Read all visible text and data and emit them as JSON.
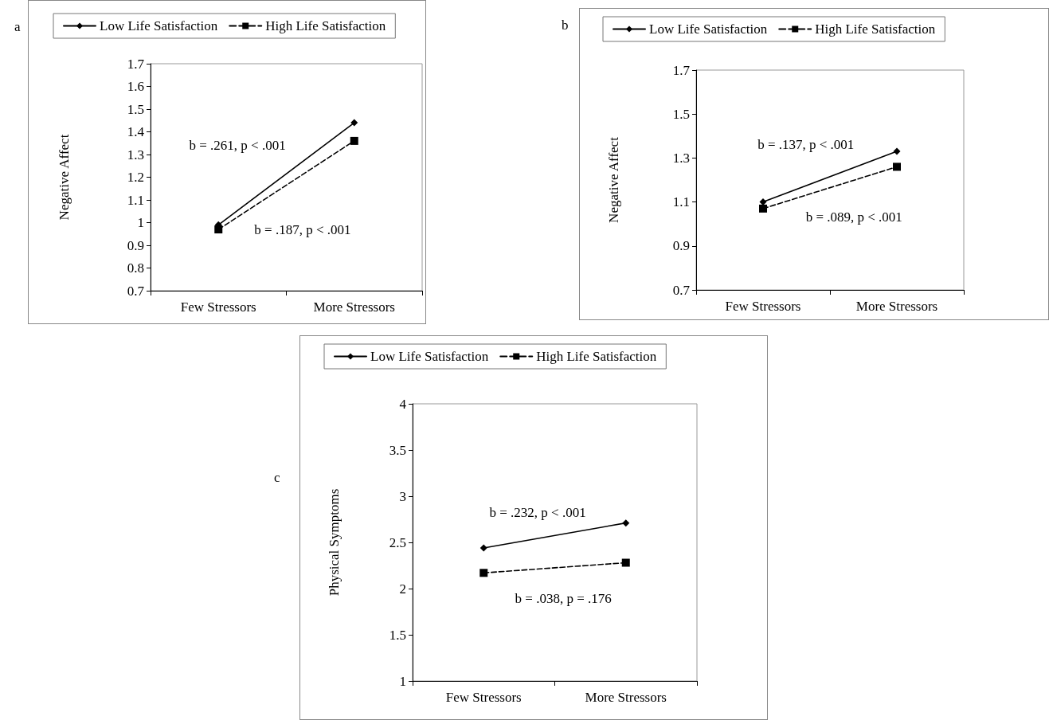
{
  "chart_data": [
    {
      "type": "line",
      "categories": [
        "Few Stressors",
        "More Stressors"
      ],
      "ylabel": "Negative Affect",
      "ylim": [
        0.7,
        1.7
      ],
      "yticks": [
        0.7,
        0.8,
        0.9,
        1,
        1.1,
        1.2,
        1.3,
        1.4,
        1.5,
        1.6,
        1.7
      ],
      "grid": false,
      "legend": "top",
      "series": [
        {
          "name": "Low Life Satisfaction",
          "color": "#000000",
          "marker": "diamond",
          "line_style": "solid",
          "values": [
            0.99,
            1.44
          ]
        },
        {
          "name": "High Life Satisfaction",
          "color": "#000000",
          "marker": "square",
          "line_style": "dashed",
          "values": [
            0.97,
            1.36
          ]
        }
      ],
      "annotations": [
        "a",
        "b = .261, p < .001",
        "b = .187, p < .001"
      ]
    },
    {
      "type": "line",
      "categories": [
        "Few Stressors",
        "More Stressors"
      ],
      "ylabel": "Negative Affect",
      "ylim": [
        0.7,
        1.7
      ],
      "yticks": [
        0.7,
        0.9,
        1.1,
        1.3,
        1.5,
        1.7
      ],
      "grid": false,
      "legend": "top",
      "series": [
        {
          "name": "Low Life Satisfaction",
          "color": "#000000",
          "marker": "diamond",
          "line_style": "solid",
          "values": [
            1.1,
            1.33
          ]
        },
        {
          "name": "High Life Satisfaction",
          "color": "#000000",
          "marker": "square",
          "line_style": "dashed",
          "values": [
            1.07,
            1.26
          ]
        }
      ],
      "annotations": [
        "b",
        "b = .137, p < .001",
        "b = .089, p < .001"
      ]
    },
    {
      "type": "line",
      "categories": [
        "Few Stressors",
        "More Stressors"
      ],
      "ylabel": "Physical Symptoms",
      "ylim": [
        1,
        4
      ],
      "yticks": [
        1,
        1.5,
        2,
        2.5,
        3,
        3.5,
        4
      ],
      "grid": false,
      "legend": "top",
      "series": [
        {
          "name": "Low Life Satisfaction",
          "color": "#000000",
          "marker": "diamond",
          "line_style": "solid",
          "values": [
            2.44,
            2.71
          ]
        },
        {
          "name": "High Life Satisfaction",
          "color": "#000000",
          "marker": "square",
          "line_style": "dashed",
          "values": [
            2.17,
            2.28
          ]
        }
      ],
      "annotations": [
        "c",
        "b = .232, p < .001",
        "b = .038, p = .176"
      ]
    }
  ]
}
